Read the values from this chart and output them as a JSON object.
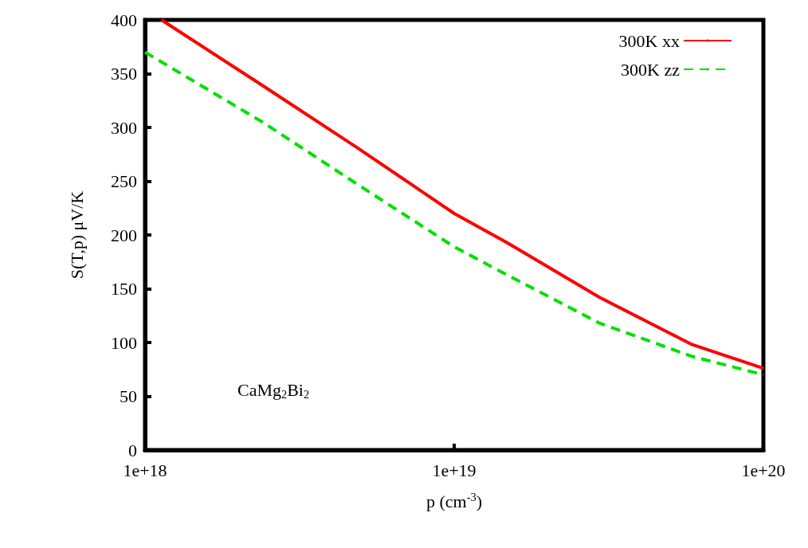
{
  "chart_data": {
    "type": "line",
    "xlabel": "p (cm$^{-3}$)",
    "ylabel": "S(T,p) μV/K",
    "log": "x",
    "xlim": [
      1e+18,
      1e+20
    ],
    "xticks": [
      {
        "value": 1e+18,
        "label": "1e+18"
      },
      {
        "value": 1e+19,
        "label": "1e+19"
      },
      {
        "value": 1e+20,
        "label": "1e+20"
      }
    ],
    "ylim": [
      0,
      400
    ],
    "yticks": [
      0,
      50,
      100,
      150,
      200,
      250,
      300,
      350,
      400
    ],
    "grid": false,
    "legend": "top right",
    "marker": "none",
    "annotations": [
      "CaMg$_{2}$Bi$_{2}$"
    ],
    "series": [
      {
        "name": "300K xx",
        "color": "#ff0000",
        "line_style": "solid",
        "x": [
          1.13e+18,
          2.43e+18,
          4.81e+18,
          1e+19,
          1.48e+19,
          2.95e+19,
          5.89e+19,
          1e+20
        ],
        "values": [
          400,
          338,
          282,
          220,
          193,
          142,
          98,
          76
        ]
      },
      {
        "name": "300K zz",
        "color": "#00e000",
        "line_style": "dashed",
        "x": [
          1e+18,
          2.43e+18,
          4.81e+18,
          1e+19,
          1.48e+19,
          2.95e+19,
          5.89e+19,
          1e+20
        ],
        "values": [
          370,
          304,
          248,
          189,
          163,
          118,
          87,
          70
        ]
      }
    ]
  }
}
